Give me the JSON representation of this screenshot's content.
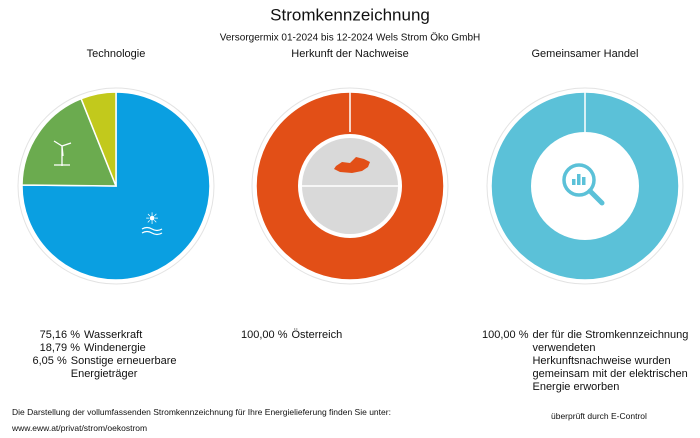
{
  "title": "Stromkennzeichnung",
  "subtitle": "Versorgermix 01-2024 bis 12-2024 Wels Strom Öko GmbH",
  "chart_data": [
    {
      "type": "pie",
      "title": "Technologie",
      "categories": [
        "Wasserkraft",
        "Windenergie",
        "Sonstige erneuerbare Energieträger"
      ],
      "values": [
        75.16,
        18.79,
        6.05
      ],
      "value_labels": [
        "75,16 %",
        "18,79 %",
        "6,05 %"
      ],
      "colors": [
        "#0a9fe1",
        "#6bab4f",
        "#c2c91c"
      ]
    },
    {
      "type": "donut",
      "title": "Herkunft der Nachweise",
      "categories": [
        "Österreich"
      ],
      "values": [
        100
      ],
      "value_labels": [
        "100,00 %"
      ],
      "colors": [
        "#e24f17"
      ]
    },
    {
      "type": "donut",
      "title": "Gemeinsamer Handel",
      "categories": [
        "der für die Stromkennzeichnung verwendeten Herkunftsnachweise wurden gemeinsam mit der elektrischen Energie erworben"
      ],
      "values": [
        100
      ],
      "value_labels": [
        "100,00 %"
      ],
      "colors": [
        "#5bc1d8"
      ]
    }
  ],
  "footer": {
    "note": "Die Darstellung der vollumfassenden Stromkennzeichnung für Ihre Energielieferung finden Sie unter:",
    "url": "www.eww.at/privat/strom/oekostrom",
    "control": "überprüft durch E-Control"
  }
}
